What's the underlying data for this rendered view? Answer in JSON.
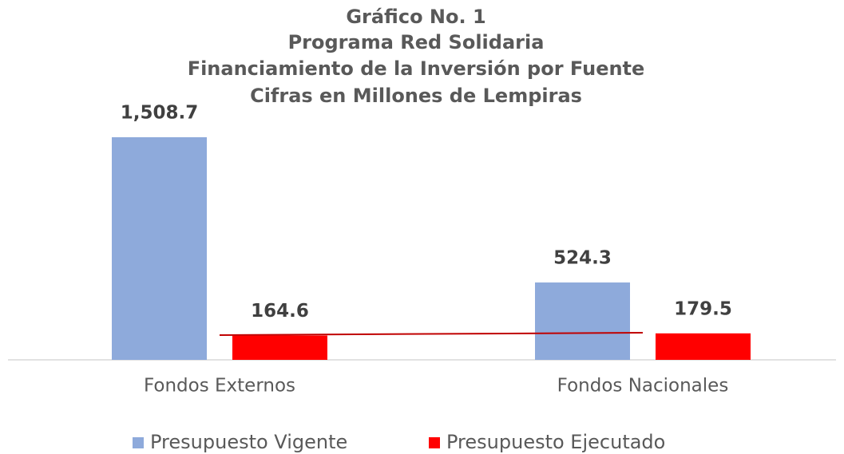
{
  "chart_data": {
    "type": "bar",
    "title": [
      "Gráfico No. 1",
      "Programa Red Solidaria",
      "Financiamiento de la Inversión por Fuente",
      "Cifras en Millones de Lempiras"
    ],
    "categories": [
      "Fondos Externos",
      "Fondos Nacionales"
    ],
    "series": [
      {
        "name": "Presupuesto Vigente",
        "color": "#8eaadb",
        "values": [
          1508.7,
          524.3
        ],
        "value_labels": [
          "1,508.7",
          "524.3"
        ]
      },
      {
        "name": "Presupuesto Ejecutado",
        "color": "#ff0000",
        "values": [
          164.6,
          179.5
        ]
      }
    ],
    "legend": "bottom"
  }
}
